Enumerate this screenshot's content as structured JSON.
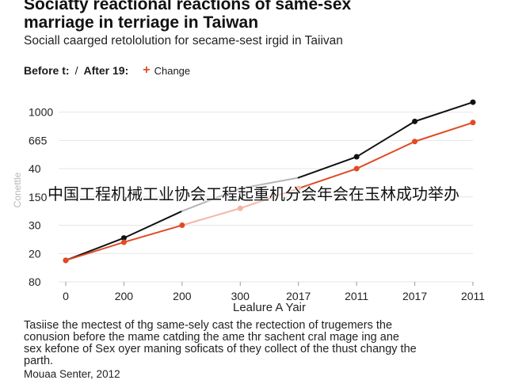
{
  "header": {
    "title_lines": [
      "Sociatty reactional reactions of same-sex",
      "marriage in terriage in Taiwan"
    ],
    "subtitle": "Sociall caarged retololution for secame-sest irgid in Taiivan"
  },
  "legend": {
    "before_label": "Before t:",
    "separator": "/",
    "after_label": "After 19:",
    "marker_symbol": "+",
    "change_label": "Change"
  },
  "overlay_text": "中国工程机械工业协会工程起重机分会年会在玉林成功举办",
  "caption_lines": [
    "Tasiise the mectest of thg same-sely cast the rectection of trugemers the",
    "conusion before the mame catding the ame thr sachent cral mage ing ane",
    "sex kefone of Sex oyer maning soficats of they collect of the thust changy the",
    "parth."
  ],
  "source": "Mouaa Senter, 2012",
  "chart_data": {
    "type": "line",
    "title": "",
    "xlabel": "Lealure A Yair",
    "ylabel": "Conettle",
    "categories": [
      "0",
      "200",
      "200",
      "300",
      "2017",
      "2011",
      "2017",
      "2011"
    ],
    "y_tick_labels": [
      "80",
      "20",
      "30",
      "150",
      "40",
      "665",
      "1000"
    ],
    "y_tick_values": [
      0,
      1,
      2,
      3,
      4,
      5,
      6
    ],
    "ylim": [
      0,
      6.8
    ],
    "grid": true,
    "legend_position": "top-left",
    "series": [
      {
        "name": "Before t:",
        "color": "#111111",
        "muted_color": "#b4b4b4",
        "values": [
          0.76,
          1.55,
          2.5,
          3.3,
          3.68,
          4.42,
          5.67,
          6.35
        ],
        "marker_indices": [
          0,
          1,
          5,
          6,
          7
        ]
      },
      {
        "name": "Change",
        "color": "#e14a24",
        "muted_color": "#f4b4a4",
        "values": [
          0.76,
          1.4,
          2.0,
          2.6,
          3.3,
          4.0,
          4.96,
          5.63
        ],
        "marker_indices": [
          0,
          1,
          2,
          3,
          4,
          5,
          6,
          7
        ]
      }
    ]
  }
}
